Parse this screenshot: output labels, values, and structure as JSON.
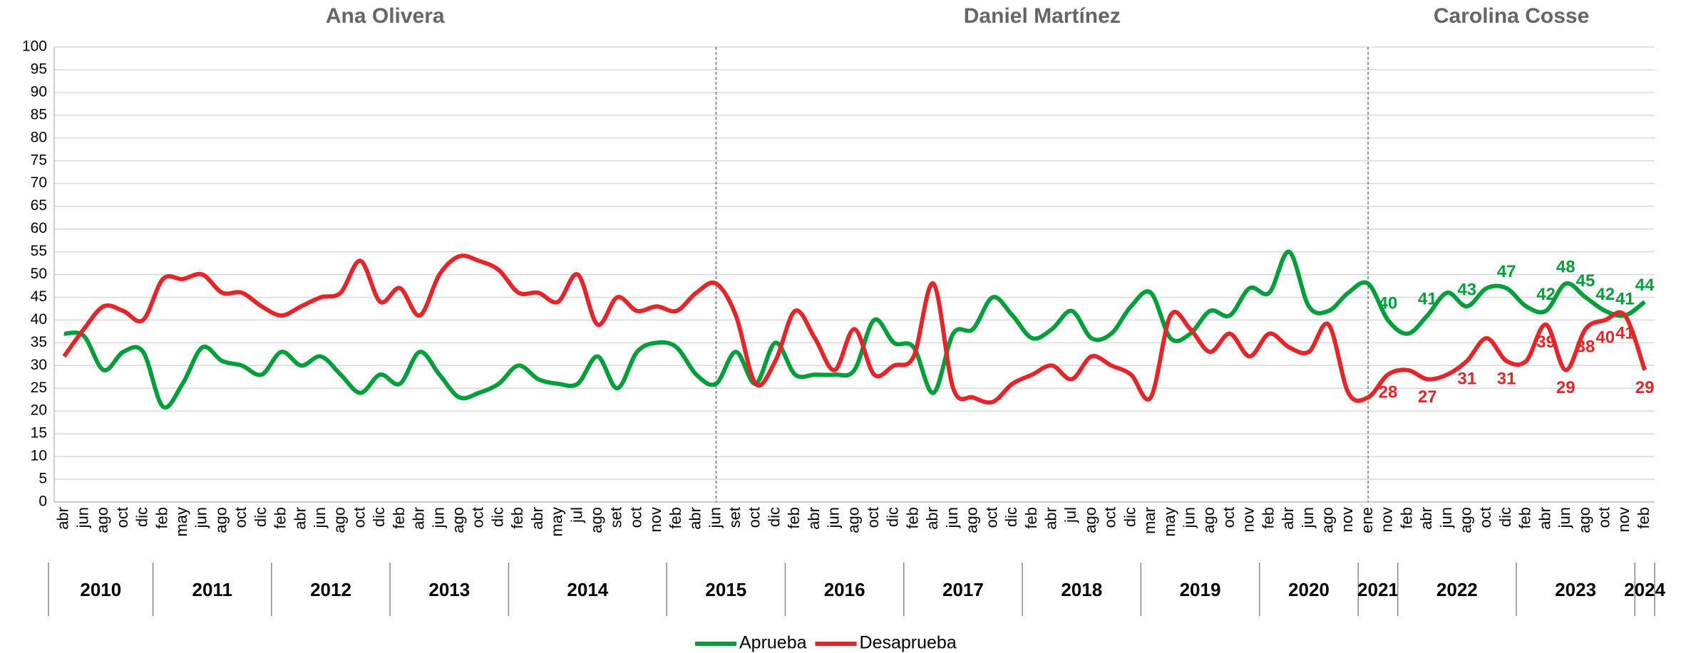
{
  "chart_data": {
    "type": "line",
    "periods": [
      "Ana Olivera",
      "Daniel Martínez",
      "Carolina Cosse"
    ],
    "categories": [
      "abr",
      "jun",
      "ago",
      "oct",
      "dic",
      "feb",
      "may",
      "jun",
      "ago",
      "oct",
      "dic",
      "feb",
      "abr",
      "jun",
      "ago",
      "oct",
      "dic",
      "feb",
      "abr",
      "jun",
      "ago",
      "oct",
      "dic",
      "feb",
      "abr",
      "may",
      "jul",
      "ago",
      "set",
      "oct",
      "nov",
      "feb",
      "abr",
      "jun",
      "set",
      "oct",
      "dic",
      "feb",
      "abr",
      "jun",
      "ago",
      "oct",
      "dic",
      "feb",
      "abr",
      "jun",
      "ago",
      "oct",
      "dic",
      "feb",
      "abr",
      "jul",
      "ago",
      "oct",
      "dic",
      "mar",
      "may",
      "jun",
      "ago",
      "oct",
      "nov",
      "feb",
      "abr",
      "jun",
      "ago",
      "nov",
      "ene",
      "nov",
      "feb",
      "abr",
      "jun",
      "ago",
      "oct",
      "dic",
      "feb",
      "abr",
      "jun",
      "ago",
      "oct",
      "nov",
      "feb"
    ],
    "years": [
      "2010",
      "2010",
      "2010",
      "2010",
      "2010",
      "2011",
      "2011",
      "2011",
      "2011",
      "2011",
      "2011",
      "2012",
      "2012",
      "2012",
      "2012",
      "2012",
      "2012",
      "2013",
      "2013",
      "2013",
      "2013",
      "2013",
      "2013",
      "2014",
      "2014",
      "2014",
      "2014",
      "2014",
      "2014",
      "2014",
      "2014",
      "2015",
      "2015",
      "2015",
      "2015",
      "2015",
      "2015",
      "2016",
      "2016",
      "2016",
      "2016",
      "2016",
      "2016",
      "2017",
      "2017",
      "2017",
      "2017",
      "2017",
      "2017",
      "2018",
      "2018",
      "2018",
      "2018",
      "2018",
      "2018",
      "2019",
      "2019",
      "2019",
      "2019",
      "2019",
      "2019",
      "2020",
      "2020",
      "2020",
      "2020",
      "2020",
      "2021",
      "2021",
      "2022",
      "2022",
      "2022",
      "2022",
      "2022",
      "2022",
      "2023",
      "2023",
      "2023",
      "2023",
      "2023",
      "2023",
      "2024"
    ],
    "series": [
      {
        "name": "Aprueba",
        "color": "#009f3c",
        "values": [
          37,
          36.5,
          29,
          33,
          33,
          21,
          26,
          34,
          31,
          30,
          28,
          33,
          30,
          32,
          28,
          24,
          28,
          26,
          33,
          28,
          23,
          24,
          26,
          30,
          27,
          26,
          26,
          32,
          25,
          33,
          35,
          34,
          28,
          26,
          33,
          26,
          35,
          28,
          28,
          28,
          29,
          40,
          35,
          34,
          24,
          37,
          38,
          45,
          41,
          36,
          38,
          42,
          36,
          37,
          43,
          46,
          36,
          37,
          42,
          41,
          47,
          46,
          55,
          43,
          42,
          46,
          48,
          40,
          37,
          41,
          46,
          43,
          47,
          47,
          43,
          42,
          48,
          45,
          42,
          41,
          44
        ],
        "value_labels": [
          null,
          null,
          null,
          null,
          null,
          null,
          null,
          null,
          null,
          null,
          null,
          null,
          null,
          null,
          null,
          null,
          null,
          null,
          null,
          null,
          null,
          null,
          null,
          null,
          null,
          null,
          null,
          null,
          null,
          null,
          null,
          null,
          null,
          null,
          null,
          null,
          null,
          null,
          null,
          null,
          null,
          null,
          null,
          null,
          null,
          null,
          null,
          null,
          null,
          null,
          null,
          null,
          null,
          null,
          null,
          null,
          null,
          null,
          null,
          null,
          null,
          null,
          null,
          null,
          null,
          null,
          null,
          "40",
          null,
          "41",
          null,
          "43",
          null,
          "47",
          null,
          "42",
          "48",
          "45",
          "42",
          "41",
          "44"
        ]
      },
      {
        "name": "Desaprueba",
        "color": "#e4252a",
        "values": [
          32,
          38,
          43,
          42,
          40,
          49,
          49,
          50,
          46,
          46,
          43,
          41,
          43,
          45,
          46,
          53,
          44,
          47,
          41,
          50,
          54,
          53,
          51,
          46,
          46,
          44,
          50,
          39,
          45,
          42,
          43,
          42,
          46,
          48,
          41,
          26,
          31,
          42,
          36,
          29,
          38,
          28,
          30,
          32,
          48,
          25,
          23,
          22,
          26,
          28,
          30,
          27,
          32,
          30,
          28,
          23,
          41,
          38,
          33,
          37,
          32,
          37,
          34,
          33,
          39,
          24,
          23,
          28,
          29,
          27,
          28,
          31,
          36,
          31,
          31,
          39,
          29,
          38,
          40,
          41,
          29
        ],
        "value_labels": [
          null,
          null,
          null,
          null,
          null,
          null,
          null,
          null,
          null,
          null,
          null,
          null,
          null,
          null,
          null,
          null,
          null,
          null,
          null,
          null,
          null,
          null,
          null,
          null,
          null,
          null,
          null,
          null,
          null,
          null,
          null,
          null,
          null,
          null,
          null,
          null,
          null,
          null,
          null,
          null,
          null,
          null,
          null,
          null,
          null,
          null,
          null,
          null,
          null,
          null,
          null,
          null,
          null,
          null,
          null,
          null,
          null,
          null,
          null,
          null,
          null,
          null,
          null,
          null,
          null,
          null,
          null,
          "28",
          null,
          "27",
          null,
          "31",
          null,
          "31",
          null,
          "39",
          "29",
          "38",
          "40",
          "41",
          "29"
        ]
      }
    ],
    "ylim": [
      0,
      100
    ],
    "yticks": [
      0,
      5,
      10,
      15,
      20,
      25,
      30,
      35,
      40,
      45,
      50,
      55,
      60,
      65,
      70,
      75,
      80,
      85,
      90,
      95,
      100
    ],
    "grid": true,
    "legend": "bottom"
  }
}
